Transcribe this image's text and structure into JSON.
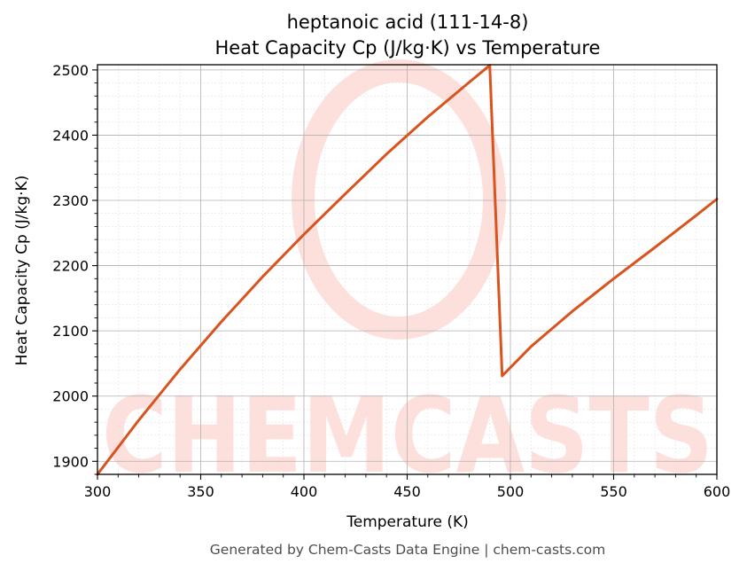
{
  "chart_data": {
    "type": "line",
    "title": "heptanoic acid (111-14-8)",
    "subtitle": "Heat Capacity Cp (J/kg·K) vs Temperature",
    "xlabel": "Temperature (K)",
    "ylabel": "Heat Capacity Cp (J/kg·K)",
    "xlim": [
      300,
      600
    ],
    "ylim": [
      1880,
      2508
    ],
    "xticks": [
      300,
      350,
      400,
      450,
      500,
      550,
      600
    ],
    "yticks": [
      1900,
      2000,
      2100,
      2200,
      2300,
      2400,
      2500
    ],
    "grid": true,
    "minor_grid": true,
    "line_color": "#d9531e",
    "series": [
      {
        "x": [
          300,
          320,
          340,
          360,
          380,
          400,
          420,
          440,
          460,
          480,
          490,
          496,
          510,
          530,
          550,
          570,
          590,
          600
        ],
        "y": [
          1880,
          1963,
          2041,
          2114,
          2183,
          2248,
          2310,
          2371,
          2428,
          2481,
          2507,
          2031,
          2076,
          2130,
          2180,
          2228,
          2277,
          2302
        ]
      }
    ]
  },
  "watermark": {
    "text": "CHEMCASTS",
    "color": "#fde0dc"
  },
  "footer": "Generated by Chem-Casts Data Engine | chem-casts.com"
}
